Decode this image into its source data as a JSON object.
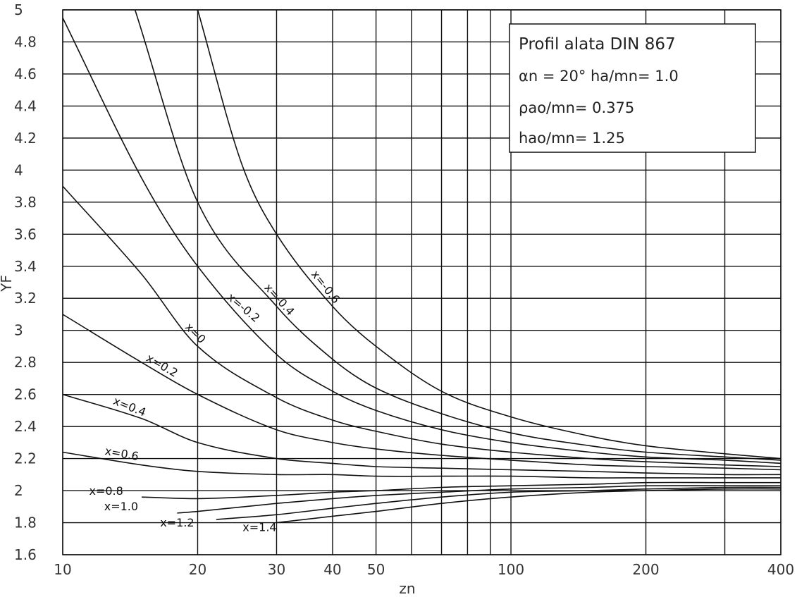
{
  "chart_data": {
    "type": "line",
    "title": "",
    "xlabel": "zn",
    "ylabel": "YF",
    "xscale": "log",
    "xlim": [
      10,
      400
    ],
    "ylim": [
      1.6,
      5.0
    ],
    "x_ticks": [
      10,
      20,
      30,
      40,
      50,
      100,
      200,
      400
    ],
    "x_tick_labels": [
      "10",
      "20",
      "30",
      "40",
      "50",
      "100",
      "200",
      "400"
    ],
    "x_gridlines": [
      10,
      20,
      30,
      40,
      50,
      60,
      70,
      80,
      90,
      100,
      200,
      300,
      400
    ],
    "y_ticks": [
      1.6,
      1.8,
      2.0,
      2.2,
      2.4,
      2.6,
      2.8,
      3.0,
      3.2,
      3.4,
      3.6,
      3.8,
      4.0,
      4.2,
      4.4,
      4.6,
      4.8,
      5.0
    ],
    "y_tick_labels": [
      "1.6",
      "1.8",
      "2",
      "2.2",
      "2.4",
      "2.6",
      "2.8",
      "3",
      "3.2",
      "3.4",
      "3.6",
      "3.8",
      "4",
      "4.2",
      "4.4",
      "4.6",
      "4.8",
      "5"
    ],
    "grid": true,
    "legend": "none",
    "series": [
      {
        "name": "x=-0.6",
        "x": [
          20,
          25,
          30,
          40,
          50,
          70,
          100,
          150,
          200,
          300,
          400
        ],
        "values": [
          5.0,
          4.05,
          3.6,
          3.15,
          2.9,
          2.62,
          2.46,
          2.34,
          2.28,
          2.23,
          2.2
        ]
      },
      {
        "name": "x=-0.4",
        "x": [
          14.5,
          20,
          30,
          40,
          50,
          70,
          100,
          150,
          200,
          300,
          400
        ],
        "values": [
          5.0,
          3.8,
          3.15,
          2.82,
          2.64,
          2.48,
          2.36,
          2.28,
          2.24,
          2.21,
          2.19
        ]
      },
      {
        "name": "x=-0.2",
        "x": [
          10,
          15,
          20,
          30,
          40,
          50,
          70,
          100,
          150,
          200,
          300,
          400
        ],
        "values": [
          4.95,
          3.95,
          3.4,
          2.85,
          2.62,
          2.5,
          2.38,
          2.3,
          2.24,
          2.21,
          2.19,
          2.17
        ]
      },
      {
        "name": "x=0",
        "x": [
          10,
          15,
          20,
          30,
          40,
          50,
          70,
          100,
          150,
          200,
          300,
          400
        ],
        "values": [
          3.9,
          3.35,
          2.9,
          2.58,
          2.44,
          2.37,
          2.29,
          2.24,
          2.2,
          2.18,
          2.16,
          2.15
        ]
      },
      {
        "name": "x=0.2",
        "x": [
          10,
          15,
          20,
          30,
          40,
          50,
          70,
          100,
          150,
          200,
          300,
          400
        ],
        "values": [
          3.1,
          2.8,
          2.6,
          2.38,
          2.3,
          2.26,
          2.22,
          2.19,
          2.16,
          2.15,
          2.14,
          2.13
        ]
      },
      {
        "name": "x=0.4",
        "x": [
          10,
          15,
          20,
          30,
          40,
          50,
          70,
          100,
          150,
          200,
          300,
          400
        ],
        "values": [
          2.6,
          2.45,
          2.3,
          2.2,
          2.17,
          2.15,
          2.14,
          2.13,
          2.12,
          2.11,
          2.1,
          2.1
        ]
      },
      {
        "name": "x=0.6",
        "x": [
          10,
          15,
          20,
          30,
          40,
          50,
          70,
          100,
          150,
          200,
          300,
          400
        ],
        "values": [
          2.24,
          2.16,
          2.12,
          2.1,
          2.1,
          2.09,
          2.09,
          2.09,
          2.08,
          2.08,
          2.08,
          2.08
        ]
      },
      {
        "name": "x=0.8",
        "x": [
          15,
          20,
          30,
          40,
          50,
          70,
          100,
          150,
          200,
          300,
          400
        ],
        "values": [
          1.96,
          1.95,
          1.97,
          1.99,
          2.0,
          2.02,
          2.03,
          2.04,
          2.05,
          2.05,
          2.05
        ]
      },
      {
        "name": "x=1.0",
        "x": [
          18,
          20,
          30,
          40,
          50,
          70,
          100,
          150,
          200,
          300,
          400
        ],
        "values": [
          1.86,
          1.87,
          1.92,
          1.95,
          1.97,
          1.99,
          2.01,
          2.02,
          2.03,
          2.03,
          2.03
        ]
      },
      {
        "name": "x=1.2",
        "x": [
          22,
          30,
          40,
          50,
          70,
          100,
          150,
          200,
          300,
          400
        ],
        "values": [
          1.82,
          1.85,
          1.89,
          1.92,
          1.96,
          1.99,
          2.0,
          2.01,
          2.02,
          2.02
        ]
      },
      {
        "name": "x=1.4",
        "x": [
          30,
          40,
          50,
          70,
          100,
          150,
          200,
          300,
          400
        ],
        "values": [
          1.8,
          1.84,
          1.87,
          1.92,
          1.96,
          1.99,
          2.0,
          2.01,
          2.01
        ]
      }
    ],
    "curve_labels": [
      {
        "series": "x=-0.6",
        "text": "x=-0.6"
      },
      {
        "series": "x=-0.4",
        "text": "x=-0.4"
      },
      {
        "series": "x=-0.2",
        "text": "x=-0.2"
      },
      {
        "series": "x=0",
        "text": "x=0"
      },
      {
        "series": "x=0.2",
        "text": "x=0.2"
      },
      {
        "series": "x=0.4",
        "text": "x=0.4"
      },
      {
        "series": "x=0.6",
        "text": "x=0.6"
      },
      {
        "series": "x=0.8",
        "text": "x=0.8"
      },
      {
        "series": "x=1.0",
        "text": "x=1.0"
      },
      {
        "series": "x=1.2",
        "text": "x=1.2"
      },
      {
        "series": "x=1.4",
        "text": "x=1.4"
      }
    ],
    "info_box": {
      "line1": "Profil alata  DIN  867",
      "line2": "αn = 20°  ha/mn= 1.0",
      "line3": "ρao/mn= 0.375",
      "line4": "hao/mn= 1.25"
    },
    "colors": {
      "line": "#111111",
      "grid": "#111111",
      "text": "#333333",
      "background": "#ffffff"
    }
  }
}
